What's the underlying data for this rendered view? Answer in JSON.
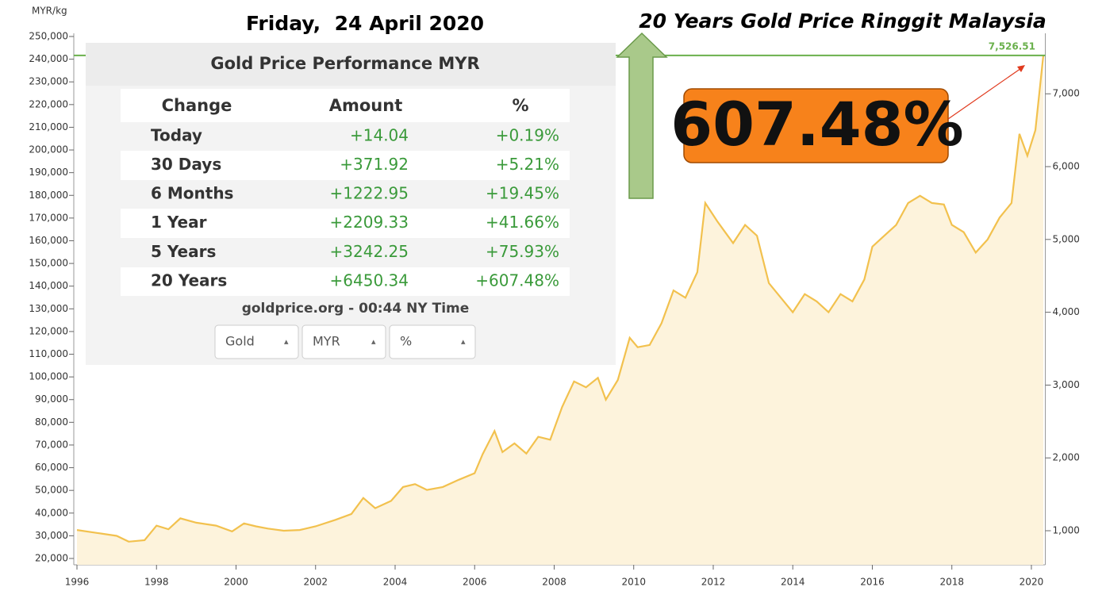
{
  "header": {
    "date": "Friday,  24 April 2020",
    "title": "20 Years Gold Price Ringgit Malaysia",
    "callout": "607.48%"
  },
  "chart_data": {
    "type": "area",
    "y_label": "MYR/kg",
    "x": [
      1996,
      1996.5,
      1997,
      1997.3,
      1997.7,
      1998,
      1998.3,
      1998.6,
      1999,
      1999.5,
      1999.9,
      2000.2,
      2000.5,
      2000.8,
      2001.2,
      2001.6,
      2002,
      2002.5,
      2002.9,
      2003.2,
      2003.5,
      2003.9,
      2004.2,
      2004.5,
      2004.8,
      2005.2,
      2005.6,
      2006,
      2006.2,
      2006.5,
      2006.7,
      2007,
      2007.3,
      2007.6,
      2007.9,
      2008.2,
      2008.5,
      2008.8,
      2009.1,
      2009.3,
      2009.6,
      2009.9,
      2010.1,
      2010.4,
      2010.7,
      2011,
      2011.3,
      2011.6,
      2011.8,
      2012.1,
      2012.3,
      2012.5,
      2012.8,
      2013.1,
      2013.4,
      2013.7,
      2014,
      2014.3,
      2014.6,
      2014.9,
      2015.2,
      2015.5,
      2015.8,
      2016,
      2016.3,
      2016.6,
      2016.9,
      2017.2,
      2017.5,
      2017.8,
      2018,
      2018.3,
      2018.6,
      2018.9,
      2019.2,
      2019.5,
      2019.7,
      2019.9,
      2020.1,
      2020.3
    ],
    "series": [
      {
        "color": "#f2c14e",
        "fill": "#fdf3dc",
        "axis": "y2",
        "values": [
          1010,
          970,
          930,
          850,
          870,
          1070,
          1020,
          1170,
          1110,
          1070,
          990,
          1100,
          1060,
          1030,
          1000,
          1010,
          1060,
          1150,
          1230,
          1450,
          1310,
          1410,
          1600,
          1640,
          1560,
          1600,
          1700,
          1790,
          2050,
          2370,
          2080,
          2200,
          2060,
          2290,
          2250,
          2700,
          3050,
          2970,
          3100,
          2800,
          3070,
          3650,
          3520,
          3550,
          3850,
          4300,
          4200,
          4550,
          5500,
          5250,
          5100,
          4950,
          5200,
          5050,
          4400,
          4200,
          4000,
          4250,
          4150,
          4000,
          4250,
          4150,
          4450,
          4900,
          5050,
          5200,
          5500,
          5600,
          5500,
          5480,
          5200,
          5100,
          4820,
          5000,
          5300,
          5500,
          6450,
          6150,
          6500,
          7526.51
        ]
      }
    ],
    "xlim": [
      1995.95,
      2020.35
    ],
    "xticks": [
      1996,
      1998,
      2000,
      2002,
      2004,
      2006,
      2008,
      2010,
      2012,
      2014,
      2016,
      2018,
      2020
    ],
    "ylim": [
      20000,
      250000
    ],
    "yticks": [
      {
        "value": 20000,
        "label": "20,000"
      },
      {
        "value": 30000,
        "label": "30,000"
      },
      {
        "value": 40000,
        "label": "40,000"
      },
      {
        "value": 50000,
        "label": "50,000"
      },
      {
        "value": 60000,
        "label": "60,000"
      },
      {
        "value": 70000,
        "label": "70,000"
      },
      {
        "value": 80000,
        "label": "80,000"
      },
      {
        "value": 90000,
        "label": "90,000"
      },
      {
        "value": 100000,
        "label": "100,000"
      },
      {
        "value": 110000,
        "label": "110,000"
      },
      {
        "value": 120000,
        "label": "120,000"
      },
      {
        "value": 130000,
        "label": "130,000"
      },
      {
        "value": 140000,
        "label": "140,000"
      },
      {
        "value": 150000,
        "label": "150,000"
      },
      {
        "value": 160000,
        "label": "160,000"
      },
      {
        "value": 170000,
        "label": "170,000"
      },
      {
        "value": 180000,
        "label": "180,000"
      },
      {
        "value": 190000,
        "label": "190,000"
      },
      {
        "value": 200000,
        "label": "200,000"
      },
      {
        "value": 210000,
        "label": "210,000"
      },
      {
        "value": 220000,
        "label": "220,000"
      },
      {
        "value": 230000,
        "label": "230,000"
      },
      {
        "value": 240000,
        "label": "240,000"
      },
      {
        "value": 250000,
        "label": "250,000"
      }
    ],
    "y2lim": [
      619,
      7787
    ],
    "y2ticks": [
      {
        "value": 1000,
        "label": "1,000"
      },
      {
        "value": 2000,
        "label": "2,000"
      },
      {
        "value": 3000,
        "label": "3,000"
      },
      {
        "value": 4000,
        "label": "4,000"
      },
      {
        "value": 5000,
        "label": "5,000"
      },
      {
        "value": 6000,
        "label": "6,000"
      },
      {
        "value": 7000,
        "label": "7,000"
      }
    ],
    "reference_line": {
      "value": 7526.51,
      "label": "7,526.51",
      "color": "#6ab04c"
    }
  },
  "panel": {
    "title": "Gold Price Performance MYR",
    "columns": [
      "Change",
      "Amount",
      "%"
    ],
    "rows": [
      [
        "Today",
        "+14.04",
        "+0.19%"
      ],
      [
        "30 Days",
        "+371.92",
        "+5.21%"
      ],
      [
        "6 Months",
        "+1222.95",
        "+19.45%"
      ],
      [
        "1 Year",
        "+2209.33",
        "+41.66%"
      ],
      [
        "5 Years",
        "+3242.25",
        "+75.93%"
      ],
      [
        "20 Years",
        "+6450.34",
        "+607.48%"
      ]
    ],
    "source": "goldprice.org - 00:44 NY Time",
    "selects": [
      "Gold",
      "MYR",
      "%"
    ]
  }
}
